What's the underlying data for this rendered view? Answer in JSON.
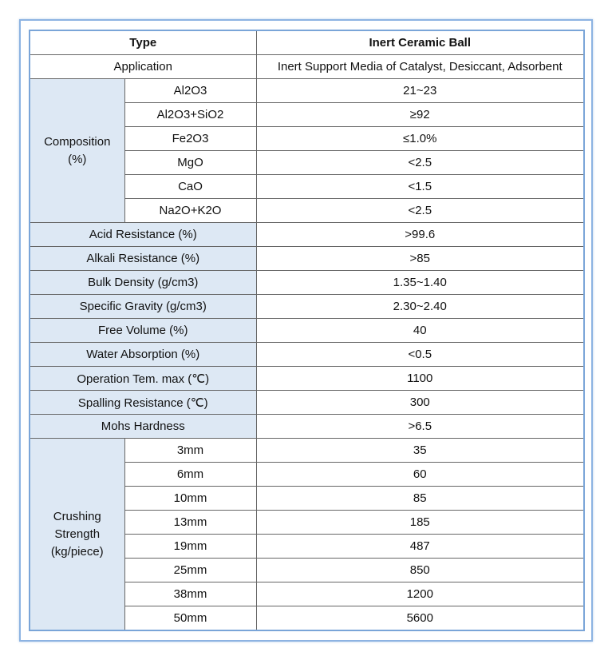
{
  "table": {
    "header": {
      "type": "Type",
      "product": "Inert Ceramic Ball"
    },
    "application": {
      "label": "Application",
      "value": "Inert Support Media of Catalyst, Desiccant, Adsorbent"
    },
    "composition": {
      "label": [
        "Composition",
        "(%)"
      ],
      "items": [
        {
          "name": "Al2O3",
          "value": "21~23"
        },
        {
          "name": "Al2O3+SiO2",
          "value": "≥92"
        },
        {
          "name": "Fe2O3",
          "value": "≤1.0%"
        },
        {
          "name": "MgO",
          "value": "<2.5"
        },
        {
          "name": "CaO",
          "value": "<1.5"
        },
        {
          "name": "Na2O+K2O",
          "value": "<2.5"
        }
      ]
    },
    "properties": [
      {
        "label": "Acid Resistance (%)",
        "value": ">99.6"
      },
      {
        "label": "Alkali Resistance (%)",
        "value": ">85"
      },
      {
        "label": "Bulk Density (g/cm3)",
        "value": "1.35~1.40"
      },
      {
        "label": "Specific Gravity (g/cm3)",
        "value": "2.30~2.40"
      },
      {
        "label": "Free Volume (%)",
        "value": "40"
      },
      {
        "label": "Water Absorption (%)",
        "value": "<0.5"
      },
      {
        "label": "Operation Tem. max (℃)",
        "value": "1100"
      },
      {
        "label": "Spalling Resistance (℃)",
        "value": "300"
      },
      {
        "label": "Mohs Hardness",
        "value": ">6.5"
      }
    ],
    "crushing": {
      "label": [
        "Crushing",
        "Strength",
        "(kg/piece)"
      ],
      "items": [
        {
          "name": "3mm",
          "value": "35"
        },
        {
          "name": "6mm",
          "value": "60"
        },
        {
          "name": "10mm",
          "value": "85"
        },
        {
          "name": "13mm",
          "value": "185"
        },
        {
          "name": "19mm",
          "value": "487"
        },
        {
          "name": "25mm",
          "value": "850"
        },
        {
          "name": "38mm",
          "value": "1200"
        },
        {
          "name": "50mm",
          "value": "5600"
        }
      ]
    }
  }
}
